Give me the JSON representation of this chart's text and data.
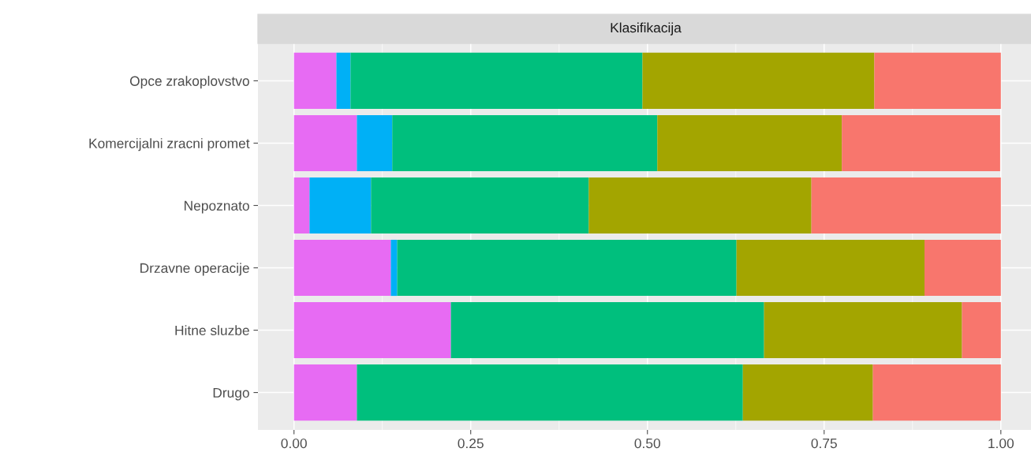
{
  "chart_data": {
    "type": "bar",
    "orientation": "horizontal",
    "stacked": true,
    "title": "Klasifikacija",
    "categories": [
      "Opce zrakoplovstvo",
      "Komercijalni zracni promet",
      "Nepoznato",
      "Drzavne operacije",
      "Hitne sluzbe",
      "Drugo"
    ],
    "series": [
      {
        "color": "#e76bf3",
        "values": [
          0.06,
          0.089,
          0.022,
          0.137,
          0.222,
          0.089
        ]
      },
      {
        "color": "#00b0f6",
        "values": [
          0.02,
          0.05,
          0.087,
          0.009,
          0,
          0
        ]
      },
      {
        "color": "#00bf7d",
        "values": [
          0.413,
          0.375,
          0.308,
          0.48,
          0.443,
          0.546
        ]
      },
      {
        "color": "#a3a500",
        "values": [
          0.328,
          0.261,
          0.315,
          0.266,
          0.28,
          0.184
        ]
      },
      {
        "color": "#f8766d",
        "values": [
          0.179,
          0.224,
          0.268,
          0.108,
          0.055,
          0.181
        ]
      }
    ],
    "xlim": [
      -0.051,
      1.046
    ],
    "xticks": [
      {
        "value": 0,
        "label": "0.00"
      },
      {
        "value": 0.25,
        "label": "0.25"
      },
      {
        "value": 0.5,
        "label": "0.50"
      },
      {
        "value": 0.75,
        "label": "0.75"
      },
      {
        "value": 1,
        "label": "1.00"
      }
    ],
    "grid": true,
    "legend": false
  }
}
